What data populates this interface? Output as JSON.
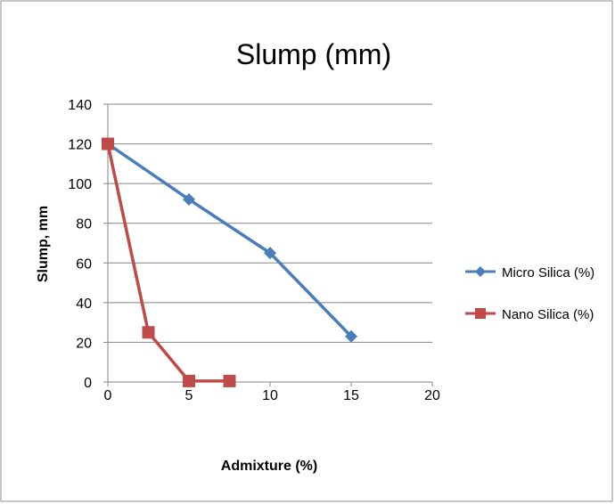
{
  "chart_data": {
    "type": "line",
    "title": "Slump (mm)",
    "xlabel": "Admixture (%)",
    "ylabel": "Slump, mm",
    "xlim": [
      0,
      20
    ],
    "ylim": [
      0,
      140
    ],
    "x_ticks": [
      "0",
      "5",
      "10",
      "15",
      "20"
    ],
    "y_ticks": [
      "0",
      "20",
      "40",
      "60",
      "80",
      "100",
      "120",
      "140"
    ],
    "grid": "horizontal",
    "legend_position": "right",
    "series": [
      {
        "name": "Micro Silica (%)",
        "color": "#4a7ebb",
        "marker": "diamond",
        "points": [
          [
            0,
            120
          ],
          [
            5,
            92
          ],
          [
            10,
            65
          ],
          [
            15,
            23
          ]
        ]
      },
      {
        "name": "Nano Silica (%)",
        "color": "#be4b48",
        "marker": "square",
        "points": [
          [
            0,
            120
          ],
          [
            2.5,
            25
          ],
          [
            5,
            0.5
          ],
          [
            7.5,
            0.5
          ]
        ]
      }
    ]
  }
}
